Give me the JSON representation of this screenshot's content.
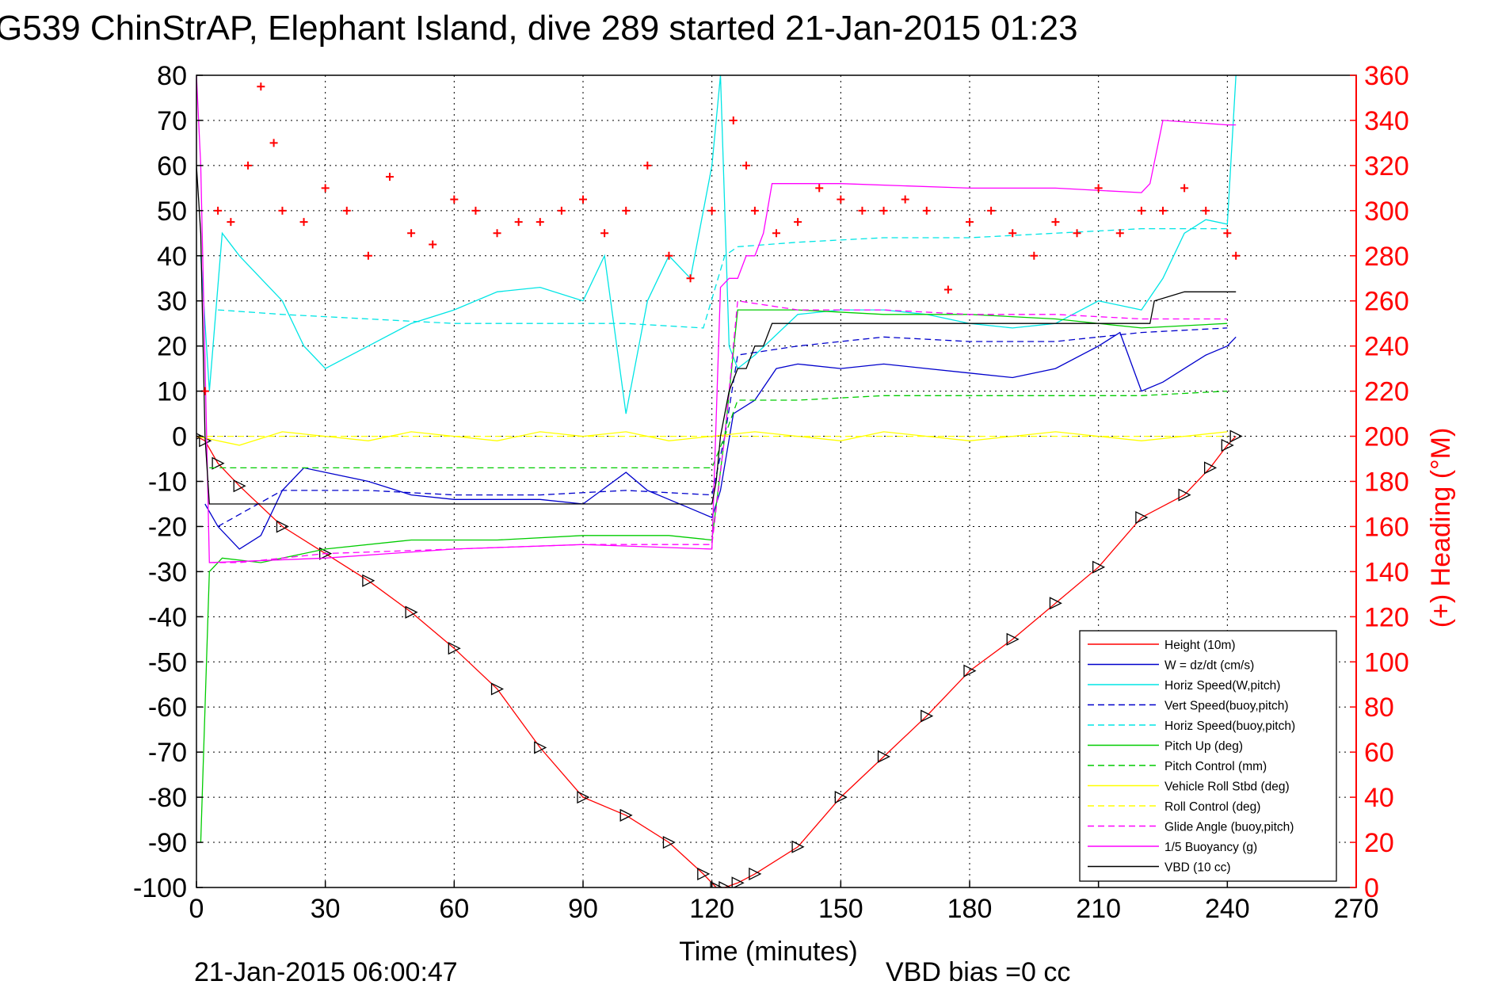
{
  "chart_data": {
    "type": "line",
    "title": "G539 ChinStrAP, Elephant Island, dive 289 started 21-Jan-2015 01:23",
    "xlabel": "Time (minutes)",
    "ylabel_right": "(+) Heading (°M)",
    "footer_left": "21-Jan-2015 06:00:47",
    "footer_right": "VBD bias =0 cc",
    "xlim": [
      0,
      270
    ],
    "ylim_left": [
      -100,
      80
    ],
    "ylim_right": [
      0,
      360
    ],
    "x_ticks": [
      "0",
      "30",
      "60",
      "90",
      "120",
      "150",
      "180",
      "210",
      "240",
      "270"
    ],
    "y_ticks_left": [
      "80",
      "70",
      "60",
      "50",
      "40",
      "30",
      "20",
      "10",
      "0",
      "-10",
      "-20",
      "-30",
      "-40",
      "-50",
      "-60",
      "-70",
      "-80",
      "-90",
      "-100"
    ],
    "y_ticks_right": [
      "360",
      "340",
      "320",
      "300",
      "280",
      "260",
      "240",
      "220",
      "200",
      "180",
      "160",
      "140",
      "120",
      "100",
      "80",
      "60",
      "40",
      "20",
      "0"
    ],
    "grid": true,
    "legend_position": "bottom-right",
    "series": [
      {
        "name": "Height (10m)",
        "color": "#ff0000",
        "style": "solid",
        "marker": "triangle",
        "x": [
          0,
          2,
          5,
          10,
          20,
          30,
          40,
          50,
          60,
          70,
          80,
          90,
          100,
          110,
          118,
          121,
          123,
          126,
          130,
          140,
          150,
          160,
          170,
          180,
          190,
          200,
          210,
          220,
          230,
          236,
          240,
          242
        ],
        "y": [
          0,
          -1,
          -6,
          -11,
          -20,
          -26,
          -32,
          -39,
          -47,
          -56,
          -69,
          -80,
          -84,
          -90,
          -97,
          -100,
          -100,
          -99,
          -97,
          -91,
          -80,
          -71,
          -62,
          -52,
          -45,
          -37,
          -29,
          -18,
          -13,
          -7,
          -2,
          0
        ]
      },
      {
        "name": "W = dz/dt (cm/s)",
        "color": "#0000cc",
        "style": "solid",
        "marker": "none",
        "x": [
          2,
          5,
          10,
          15,
          20,
          25,
          30,
          40,
          50,
          60,
          70,
          80,
          90,
          100,
          105,
          110,
          115,
          120,
          122,
          125,
          130,
          135,
          140,
          150,
          160,
          170,
          180,
          190,
          200,
          210,
          215,
          220,
          225,
          230,
          235,
          240,
          242
        ],
        "y": [
          -15,
          -20,
          -25,
          -22,
          -12,
          -7,
          -8,
          -10,
          -13,
          -14,
          -14,
          -14,
          -15,
          -8,
          -12,
          -14,
          -16,
          -18,
          -12,
          5,
          8,
          15,
          16,
          15,
          16,
          15,
          14,
          13,
          15,
          20,
          23,
          10,
          12,
          15,
          18,
          20,
          22
        ]
      },
      {
        "name": "Horiz Speed(W,pitch)",
        "color": "#00e5e5",
        "style": "solid",
        "marker": "none",
        "x": [
          1,
          3,
          6,
          10,
          15,
          20,
          25,
          30,
          40,
          50,
          60,
          70,
          80,
          90,
          95,
          100,
          105,
          110,
          115,
          120,
          122,
          124,
          126,
          130,
          140,
          150,
          160,
          170,
          180,
          190,
          200,
          210,
          220,
          225,
          230,
          235,
          240,
          242
        ],
        "y": [
          40,
          10,
          45,
          40,
          35,
          30,
          20,
          15,
          20,
          25,
          28,
          32,
          33,
          30,
          40,
          5,
          30,
          40,
          35,
          60,
          80,
          20,
          15,
          18,
          27,
          28,
          28,
          27,
          25,
          24,
          25,
          30,
          28,
          35,
          45,
          48,
          47,
          80
        ]
      },
      {
        "name": "Vert Speed(buoy,pitch)",
        "color": "#0000cc",
        "style": "dashed",
        "marker": "none",
        "x": [
          5,
          20,
          40,
          60,
          80,
          100,
          120,
          123,
          126,
          140,
          160,
          180,
          200,
          220,
          240
        ],
        "y": [
          -20,
          -12,
          -12,
          -13,
          -13,
          -12,
          -13,
          0,
          18,
          20,
          22,
          21,
          21,
          23,
          24
        ]
      },
      {
        "name": "Horiz Speed(buoy,pitch)",
        "color": "#00e5e5",
        "style": "dashed",
        "marker": "none",
        "x": [
          5,
          20,
          40,
          60,
          80,
          100,
          118,
          123,
          126,
          140,
          160,
          180,
          200,
          220,
          240
        ],
        "y": [
          28,
          27,
          26,
          25,
          25,
          25,
          24,
          40,
          42,
          43,
          44,
          44,
          45,
          46,
          46
        ]
      },
      {
        "name": "Pitch Up (deg)",
        "color": "#00cc00",
        "style": "solid",
        "marker": "none",
        "x": [
          1,
          3,
          6,
          15,
          30,
          50,
          70,
          90,
          110,
          120,
          123,
          126,
          140,
          160,
          180,
          200,
          220,
          240
        ],
        "y": [
          -90,
          -30,
          -27,
          -28,
          -25,
          -23,
          -23,
          -22,
          -22,
          -23,
          0,
          28,
          28,
          27,
          27,
          26,
          24,
          25
        ]
      },
      {
        "name": "Pitch Control (mm)",
        "color": "#00cc00",
        "style": "dashed",
        "marker": "none",
        "x": [
          3,
          10,
          30,
          60,
          90,
          120,
          123,
          126,
          140,
          160,
          180,
          200,
          220,
          240
        ],
        "y": [
          -7,
          -7,
          -7,
          -7,
          -7,
          -7,
          0,
          8,
          8,
          9,
          9,
          9,
          9,
          10
        ]
      },
      {
        "name": "Vehicle Roll Stbd (deg)",
        "color": "#ffff00",
        "style": "solid",
        "marker": "none",
        "x": [
          0,
          10,
          20,
          30,
          40,
          50,
          60,
          70,
          80,
          90,
          100,
          110,
          120,
          130,
          140,
          150,
          160,
          170,
          180,
          190,
          200,
          210,
          220,
          230,
          240
        ],
        "y": [
          0,
          -2,
          1,
          0,
          -1,
          1,
          0,
          -1,
          1,
          0,
          1,
          -1,
          0,
          1,
          0,
          -1,
          1,
          0,
          -1,
          0,
          1,
          0,
          -1,
          0,
          1
        ]
      },
      {
        "name": "Roll Control (deg)",
        "color": "#ffff00",
        "style": "dashed",
        "marker": "none",
        "x": [
          0,
          20,
          40,
          60,
          80,
          100,
          120,
          140,
          160,
          180,
          200,
          220,
          240
        ],
        "y": [
          0,
          0,
          0,
          0,
          0,
          0,
          0,
          0,
          0,
          0,
          0,
          0,
          0
        ]
      },
      {
        "name": "Glide Angle (buoy,pitch)",
        "color": "#ff00ff",
        "style": "dashed",
        "marker": "none",
        "x": [
          3,
          10,
          30,
          60,
          90,
          120,
          123,
          126,
          140,
          160,
          180,
          200,
          220,
          240
        ],
        "y": [
          -28,
          -28,
          -26,
          -25,
          -24,
          -24,
          0,
          30,
          28,
          28,
          27,
          27,
          26,
          26
        ]
      },
      {
        "name": "1/5 Buoyancy (g)",
        "color": "#ff00ff",
        "style": "solid",
        "marker": "none",
        "x": [
          0,
          1,
          3,
          30,
          60,
          90,
          120,
          122,
          124,
          126,
          128,
          130,
          132,
          134,
          150,
          180,
          200,
          220,
          222,
          225,
          240,
          242
        ],
        "y": [
          80,
          60,
          -28,
          -27,
          -25,
          -24,
          -25,
          33,
          35,
          35,
          40,
          40,
          45,
          56,
          56,
          55,
          55,
          54,
          56,
          70,
          69,
          69
        ]
      },
      {
        "name": "VBD (10 cc)",
        "color": "#000000",
        "style": "solid",
        "marker": "none",
        "x": [
          0,
          1,
          2,
          3,
          30,
          60,
          90,
          120,
          121,
          122,
          124,
          126,
          128,
          130,
          132,
          134,
          200,
          222,
          223,
          230,
          242
        ],
        "y": [
          60,
          45,
          0,
          -15,
          -15,
          -15,
          -15,
          -15,
          -10,
          0,
          10,
          15,
          15,
          20,
          20,
          25,
          25,
          25,
          30,
          32,
          32
        ]
      },
      {
        "name": "Heading",
        "axis": "right",
        "color": "#ff0000",
        "style": "markers",
        "marker": "plus",
        "x": [
          2,
          5,
          8,
          12,
          15,
          18,
          20,
          25,
          30,
          35,
          40,
          45,
          50,
          55,
          60,
          65,
          70,
          75,
          80,
          85,
          90,
          95,
          100,
          105,
          110,
          115,
          120,
          125,
          128,
          130,
          135,
          140,
          145,
          150,
          155,
          160,
          165,
          170,
          175,
          180,
          185,
          190,
          195,
          200,
          205,
          210,
          215,
          220,
          225,
          230,
          235,
          240,
          242
        ],
        "y": [
          220,
          300,
          295,
          320,
          355,
          330,
          300,
          295,
          310,
          300,
          280,
          315,
          290,
          285,
          305,
          300,
          290,
          295,
          295,
          300,
          305,
          290,
          300,
          320,
          280,
          270,
          300,
          340,
          320,
          300,
          290,
          295,
          310,
          305,
          300,
          300,
          305,
          300,
          265,
          295,
          300,
          290,
          280,
          295,
          290,
          310,
          290,
          300,
          300,
          310,
          300,
          290,
          280
        ]
      }
    ]
  }
}
